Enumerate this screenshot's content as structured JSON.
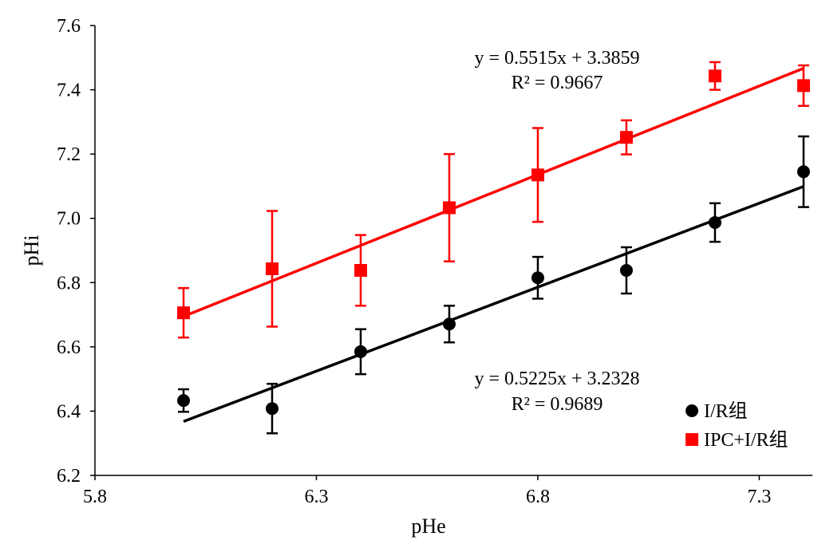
{
  "chart_data": {
    "type": "scatter",
    "title": "",
    "xlabel": "pHe",
    "ylabel": "pHi",
    "xlim": [
      5.8,
      7.42
    ],
    "ylim": [
      6.2,
      7.6
    ],
    "xticks": [
      "5.8",
      "6.3",
      "6.8",
      "7.3"
    ],
    "xtick_values": [
      5.8,
      6.3,
      6.8,
      7.3
    ],
    "yticks": [
      "6.2",
      "6.4",
      "6.6",
      "6.8",
      "7.0",
      "7.2",
      "7.4",
      "7.6"
    ],
    "ytick_values": [
      6.2,
      6.4,
      6.6,
      6.8,
      7.0,
      7.2,
      7.4,
      7.6
    ],
    "grid": false,
    "legend_position": "bottom-right",
    "series": [
      {
        "name": "I/R组",
        "marker": "circle",
        "color": "#000000",
        "x": [
          6.0,
          6.2,
          6.4,
          6.6,
          6.8,
          7.0,
          7.2,
          7.4
        ],
        "y": [
          6.433,
          6.408,
          6.585,
          6.671,
          6.815,
          6.838,
          6.987,
          7.145
        ],
        "error": [
          0.035,
          0.077,
          0.07,
          0.057,
          0.065,
          0.072,
          0.06,
          0.11
        ],
        "trendline": {
          "slope": 0.5225,
          "intercept": 3.2328,
          "equation": "y = 0.5225x + 3.2328",
          "r2": "R² = 0.9689"
        }
      },
      {
        "name": "IPC+I/R组",
        "marker": "square",
        "color": "#ff0000",
        "x": [
          6.0,
          6.2,
          6.4,
          6.6,
          6.8,
          7.0,
          7.2,
          7.4
        ],
        "y": [
          6.706,
          6.843,
          6.838,
          7.033,
          7.135,
          7.252,
          7.443,
          7.413
        ],
        "error": [
          0.077,
          0.18,
          0.11,
          0.167,
          0.146,
          0.053,
          0.043,
          0.063
        ],
        "trendline": {
          "slope": 0.5515,
          "intercept": 3.3859,
          "equation": "y = 0.5515x + 3.3859",
          "r2": "R² = 0.9667"
        }
      }
    ]
  }
}
